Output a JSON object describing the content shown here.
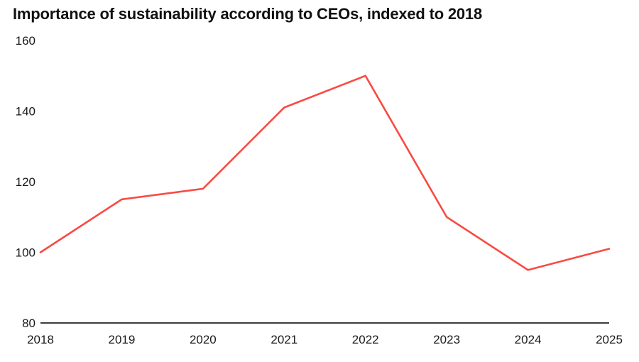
{
  "chart_data": {
    "type": "line",
    "title": "Importance of sustainability according to CEOs, indexed to 2018",
    "categories": [
      "2018",
      "2019",
      "2020",
      "2021",
      "2022",
      "2023",
      "2024",
      "2025"
    ],
    "values": [
      100,
      115,
      118,
      141,
      150,
      110,
      95,
      101
    ],
    "xlabel": "",
    "ylabel": "",
    "ylim": [
      80,
      160
    ],
    "yticks": [
      80,
      100,
      120,
      140,
      160
    ],
    "grid": false,
    "legend": "none",
    "line_color": "#f84a42",
    "axis_color": "#3d3d3d",
    "tick_label_color": "#1a1a1a",
    "title_color": "#111111"
  }
}
